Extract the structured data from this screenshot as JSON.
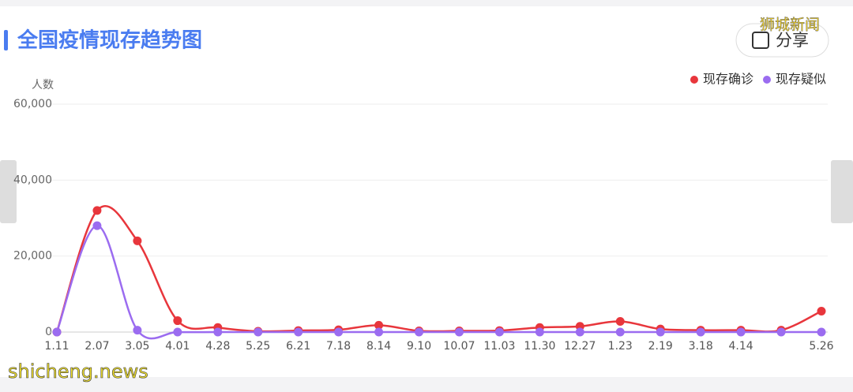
{
  "chart_data": {
    "type": "line",
    "title": "全国疫情现存趋势图",
    "y_label": "人数",
    "categories": [
      "1.11",
      "2.07",
      "3.05",
      "4.01",
      "4.28",
      "5.25",
      "6.21",
      "7.18",
      "8.14",
      "9.10",
      "10.07",
      "11.03",
      "11.30",
      "12.27",
      "1.23",
      "2.19",
      "3.18",
      "4.14",
      null,
      "5.26"
    ],
    "series": [
      {
        "name": "现存确诊",
        "color": "#e8363c",
        "values": [
          0,
          32000,
          24000,
          3000,
          1200,
          200,
          400,
          600,
          1800,
          300,
          300,
          400,
          1200,
          1500,
          2800,
          800,
          500,
          500,
          500,
          5500
        ]
      },
      {
        "name": "现存疑似",
        "color": "#9b6cf0",
        "values": [
          0,
          28000,
          500,
          0,
          0,
          0,
          0,
          0,
          0,
          0,
          0,
          0,
          0,
          0,
          0,
          0,
          0,
          0,
          0,
          0
        ]
      }
    ],
    "ylim": [
      0,
      60000
    ],
    "yticks": [
      0,
      {
        "value": 20000,
        "label": "20,000"
      },
      {
        "value": 40000,
        "label": "40,000"
      },
      {
        "value": 60000,
        "label": "60,000"
      }
    ],
    "grid": true,
    "legend": "top-right"
  },
  "share_button": "分享",
  "watermarks": [
    "狮城新闻",
    "shicheng.news"
  ]
}
